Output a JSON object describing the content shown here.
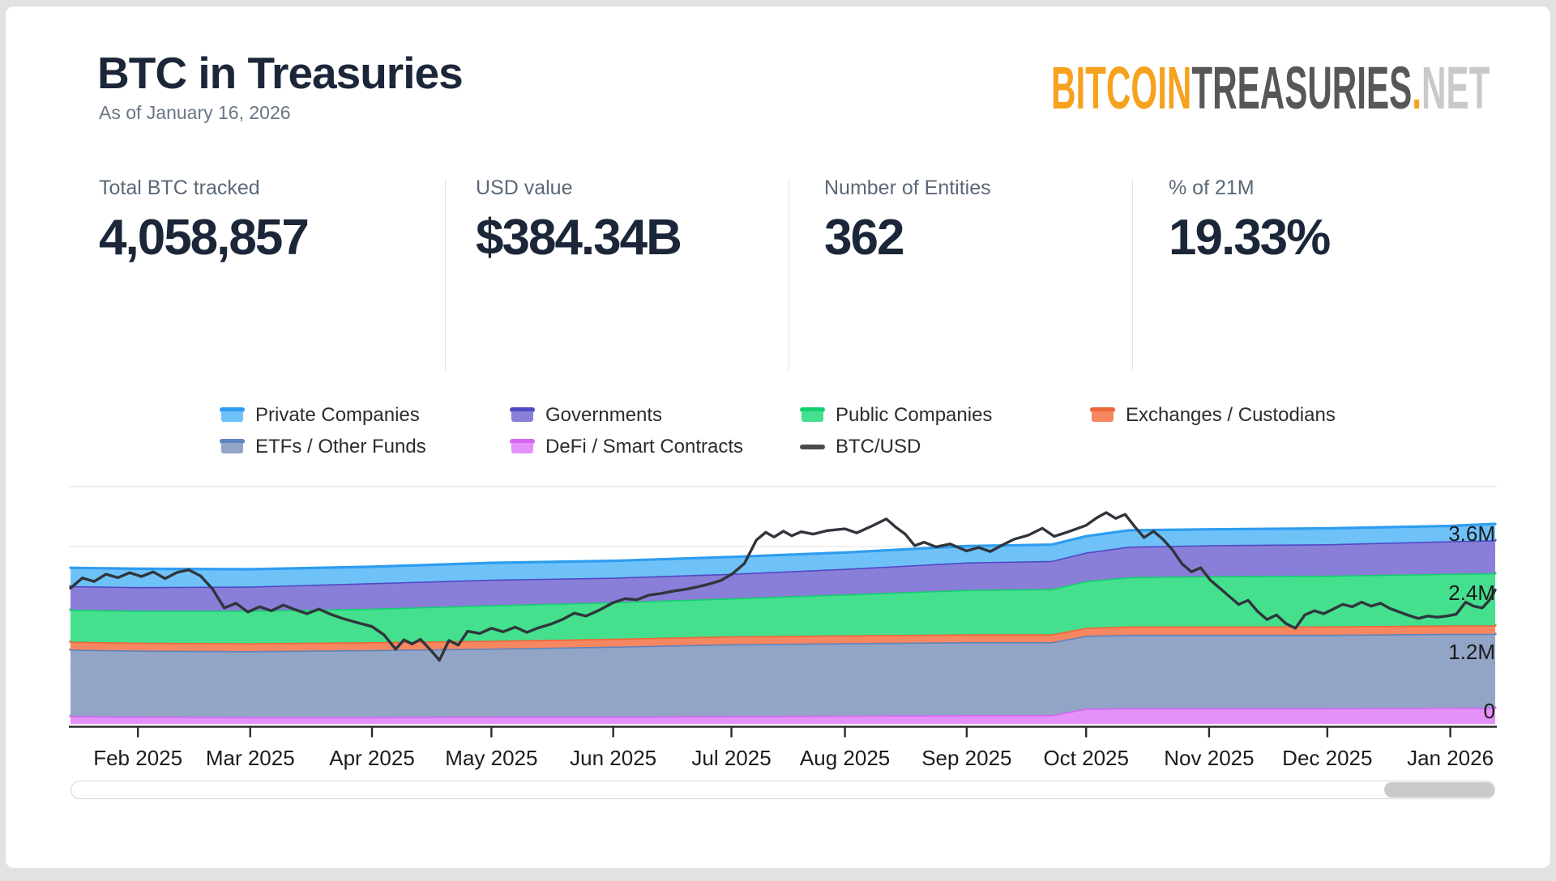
{
  "header": {
    "title": "BTC in Treasuries",
    "as_of": "As of January 16, 2026"
  },
  "logo": {
    "bitcoin": "BITCOIN",
    "treasuries": "TREASURIES",
    "dot": ".",
    "net": "NET",
    "color_bitcoin": "#F6A21E",
    "color_treasuries": "#57575A",
    "color_net": "#C9C9CB"
  },
  "stats": [
    {
      "label": "Total BTC tracked",
      "value": "4,058,857"
    },
    {
      "label": "USD value",
      "value": "$384.34B"
    },
    {
      "label": "Number of Entities",
      "value": "362"
    },
    {
      "label": "% of 21M",
      "value": "19.33%"
    }
  ],
  "legend": [
    {
      "label": "Private Companies",
      "type": "area",
      "stroke": "#2D9DF0",
      "fill": "#6FC2F8"
    },
    {
      "label": "Governments",
      "type": "area",
      "stroke": "#5049C5",
      "fill": "#897FD8"
    },
    {
      "label": "Public Companies",
      "type": "area",
      "stroke": "#13CF6E",
      "fill": "#44E08E"
    },
    {
      "label": "Exchanges / Custodians",
      "type": "area",
      "stroke": "#F0653A",
      "fill": "#F78760"
    },
    {
      "label": "ETFs / Other Funds",
      "type": "area",
      "stroke": "#5F83BC",
      "fill": "#92A5C6"
    },
    {
      "label": "DeFi / Smart Contracts",
      "type": "area",
      "stroke": "#D566F2",
      "fill": "#E491F8"
    },
    {
      "label": "BTC/USD",
      "type": "line",
      "stroke": "#4A4A4A",
      "fill": "#4A4A4A"
    }
  ],
  "chart_data": {
    "type": "area",
    "stacked": true,
    "title": "BTC held in treasuries over time (millions of BTC), with BTC/USD price overlay",
    "x_unit": "months since 2025-01-16",
    "xlim": [
      0,
      12.05
    ],
    "ylim_btc_millions": [
      0,
      4.8
    ],
    "grid": true,
    "legend_position": "top-center",
    "x_ticks": [
      {
        "m": 0.57,
        "label": "Feb 2025"
      },
      {
        "m": 1.52,
        "label": "Mar 2025"
      },
      {
        "m": 2.55,
        "label": "Apr 2025"
      },
      {
        "m": 3.56,
        "label": "May 2025"
      },
      {
        "m": 4.59,
        "label": "Jun 2025"
      },
      {
        "m": 5.59,
        "label": "Jul 2025"
      },
      {
        "m": 6.55,
        "label": "Aug 2025"
      },
      {
        "m": 7.58,
        "label": "Sep 2025"
      },
      {
        "m": 8.59,
        "label": "Oct 2025"
      },
      {
        "m": 9.63,
        "label": "Nov 2025"
      },
      {
        "m": 10.63,
        "label": "Dec 2025"
      },
      {
        "m": 11.67,
        "label": "Jan 2026"
      }
    ],
    "y_axis": {
      "unit": "BTC (millions)",
      "ticks": [
        {
          "v": 0,
          "label": "0"
        },
        {
          "v": 1.2,
          "label": "1.2M"
        },
        {
          "v": 2.4,
          "label": "2.4M"
        },
        {
          "v": 3.6,
          "label": "3.6M"
        }
      ]
    },
    "x_series": [
      0,
      0.57,
      1.52,
      2.55,
      3.56,
      4.59,
      5.59,
      6.55,
      7.58,
      8.3,
      8.59,
      8.95,
      9.63,
      10.63,
      11.67,
      12.05
    ],
    "series": [
      {
        "name": "DeFi / Smart Contracts",
        "stroke": "#D566F2",
        "fill": "#E491F8",
        "values": [
          0.16,
          0.15,
          0.14,
          0.14,
          0.15,
          0.15,
          0.16,
          0.17,
          0.18,
          0.18,
          0.31,
          0.32,
          0.32,
          0.32,
          0.33,
          0.33
        ]
      },
      {
        "name": "ETFs / Other Funds",
        "stroke": "#5F83BC",
        "fill": "#92A5C6",
        "values": [
          1.35,
          1.34,
          1.34,
          1.36,
          1.38,
          1.42,
          1.46,
          1.47,
          1.48,
          1.48,
          1.48,
          1.49,
          1.49,
          1.49,
          1.5,
          1.5
        ]
      },
      {
        "name": "Exchanges / Custodians",
        "stroke": "#F0653A",
        "fill": "#F78760",
        "values": [
          0.16,
          0.16,
          0.16,
          0.16,
          0.16,
          0.16,
          0.16,
          0.16,
          0.16,
          0.16,
          0.16,
          0.17,
          0.17,
          0.17,
          0.17,
          0.17
        ]
      },
      {
        "name": "Public Companies",
        "stroke": "#13CF6E",
        "fill": "#44E08E",
        "values": [
          0.65,
          0.65,
          0.66,
          0.68,
          0.72,
          0.74,
          0.77,
          0.83,
          0.9,
          0.92,
          0.95,
          1.0,
          1.02,
          1.03,
          1.05,
          1.06
        ]
      },
      {
        "name": "Governments",
        "stroke": "#5049C5",
        "fill": "#897FD8",
        "values": [
          0.48,
          0.48,
          0.49,
          0.52,
          0.52,
          0.5,
          0.5,
          0.52,
          0.56,
          0.57,
          0.58,
          0.62,
          0.63,
          0.64,
          0.66,
          0.67
        ]
      },
      {
        "name": "Private Companies",
        "stroke": "#2D9DF0",
        "fill": "#6FC2F8",
        "values": [
          0.37,
          0.37,
          0.35,
          0.33,
          0.34,
          0.34,
          0.34,
          0.33,
          0.33,
          0.33,
          0.33,
          0.33,
          0.32,
          0.32,
          0.31,
          0.33
        ]
      }
    ],
    "btc_usd": {
      "name": "BTC/USD",
      "color": "#30353C",
      "unit": "USD thousands (price axis not labeled on chart)",
      "points": [
        [
          0,
          100
        ],
        [
          0.1,
          103.5
        ],
        [
          0.2,
          102.3
        ],
        [
          0.3,
          104.8
        ],
        [
          0.4,
          103.6
        ],
        [
          0.5,
          105.3
        ],
        [
          0.6,
          104
        ],
        [
          0.7,
          105.6
        ],
        [
          0.8,
          103.3
        ],
        [
          0.9,
          105.4
        ],
        [
          1,
          106.3
        ],
        [
          1.1,
          104.2
        ],
        [
          1.2,
          99.8
        ],
        [
          1.3,
          93.2
        ],
        [
          1.4,
          94.8
        ],
        [
          1.5,
          91.8
        ],
        [
          1.6,
          93.6
        ],
        [
          1.7,
          92.2
        ],
        [
          1.8,
          94.2
        ],
        [
          1.9,
          92.6
        ],
        [
          2,
          91.2
        ],
        [
          2.1,
          92.8
        ],
        [
          2.2,
          91
        ],
        [
          2.3,
          89.6
        ],
        [
          2.42,
          88.2
        ],
        [
          2.55,
          86.8
        ],
        [
          2.65,
          84
        ],
        [
          2.75,
          79
        ],
        [
          2.82,
          82.2
        ],
        [
          2.89,
          80.8
        ],
        [
          2.96,
          82.4
        ],
        [
          3.05,
          78.5
        ],
        [
          3.12,
          75.2
        ],
        [
          3.2,
          82
        ],
        [
          3.28,
          80.4
        ],
        [
          3.36,
          85.2
        ],
        [
          3.46,
          84.4
        ],
        [
          3.56,
          86.2
        ],
        [
          3.66,
          85
        ],
        [
          3.76,
          86.6
        ],
        [
          3.86,
          84.8
        ],
        [
          3.96,
          86.4
        ],
        [
          4.06,
          87.6
        ],
        [
          4.16,
          89.2
        ],
        [
          4.26,
          91.4
        ],
        [
          4.36,
          90.4
        ],
        [
          4.48,
          92.6
        ],
        [
          4.59,
          95
        ],
        [
          4.69,
          96.4
        ],
        [
          4.79,
          96
        ],
        [
          4.89,
          97.6
        ],
        [
          5,
          98.2
        ],
        [
          5.1,
          99
        ],
        [
          5.2,
          99.6
        ],
        [
          5.3,
          100.4
        ],
        [
          5.4,
          101.4
        ],
        [
          5.5,
          102.6
        ],
        [
          5.6,
          105
        ],
        [
          5.7,
          108.5
        ],
        [
          5.8,
          116.5
        ],
        [
          5.88,
          119.2
        ],
        [
          5.95,
          117.6
        ],
        [
          6.03,
          119.6
        ],
        [
          6.1,
          118
        ],
        [
          6.18,
          119.4
        ],
        [
          6.28,
          118.6
        ],
        [
          6.4,
          119.8
        ],
        [
          6.55,
          120.4
        ],
        [
          6.65,
          119
        ],
        [
          6.78,
          121.4
        ],
        [
          6.9,
          123.8
        ],
        [
          6.98,
          121
        ],
        [
          7.06,
          118.6
        ],
        [
          7.14,
          114.6
        ],
        [
          7.22,
          115.8
        ],
        [
          7.32,
          114.2
        ],
        [
          7.44,
          115.2
        ],
        [
          7.58,
          112.8
        ],
        [
          7.68,
          114
        ],
        [
          7.78,
          112.6
        ],
        [
          7.88,
          114.8
        ],
        [
          7.98,
          116.8
        ],
        [
          8.1,
          118.2
        ],
        [
          8.22,
          120.6
        ],
        [
          8.32,
          117.8
        ],
        [
          8.44,
          119.4
        ],
        [
          8.59,
          121.6
        ],
        [
          8.68,
          124.2
        ],
        [
          8.76,
          126
        ],
        [
          8.84,
          124
        ],
        [
          8.92,
          125.4
        ],
        [
          9,
          121.2
        ],
        [
          9.08,
          117.4
        ],
        [
          9.16,
          119.6
        ],
        [
          9.24,
          116.8
        ],
        [
          9.32,
          113.2
        ],
        [
          9.4,
          108.4
        ],
        [
          9.48,
          105.6
        ],
        [
          9.56,
          107
        ],
        [
          9.64,
          102.8
        ],
        [
          9.72,
          100
        ],
        [
          9.8,
          97.2
        ],
        [
          9.88,
          94.4
        ],
        [
          9.96,
          95.8
        ],
        [
          10.04,
          92
        ],
        [
          10.12,
          89.2
        ],
        [
          10.2,
          90.8
        ],
        [
          10.28,
          87.8
        ],
        [
          10.36,
          86.2
        ],
        [
          10.44,
          90.8
        ],
        [
          10.52,
          92.2
        ],
        [
          10.6,
          91.2
        ],
        [
          10.68,
          92.8
        ],
        [
          10.76,
          94.4
        ],
        [
          10.84,
          93.6
        ],
        [
          10.92,
          95.2
        ],
        [
          11,
          93.8
        ],
        [
          11.08,
          94.8
        ],
        [
          11.16,
          93
        ],
        [
          11.24,
          91.8
        ],
        [
          11.32,
          90.6
        ],
        [
          11.4,
          89.6
        ],
        [
          11.48,
          90.4
        ],
        [
          11.56,
          90
        ],
        [
          11.64,
          90.4
        ],
        [
          11.72,
          91
        ],
        [
          11.8,
          95.2
        ],
        [
          11.87,
          93.8
        ],
        [
          11.94,
          93.2
        ],
        [
          12,
          95.8
        ],
        [
          12.05,
          99.4
        ]
      ]
    }
  },
  "scrollbar": {
    "position": "right-end"
  }
}
